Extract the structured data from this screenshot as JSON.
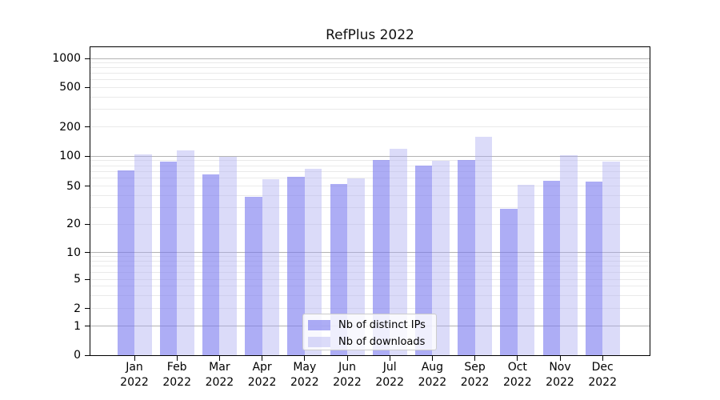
{
  "title": "RefPlus 2022",
  "chart_data": {
    "type": "bar",
    "title": "RefPlus 2022",
    "yscale": "log-like (ticks 0,1,2,5,10,20,50,100,200,500,1000)",
    "grid": true,
    "legend_position": "lower center",
    "ylim": [
      0,
      1000
    ],
    "yticks": [
      0,
      1,
      2,
      5,
      10,
      20,
      50,
      100,
      200,
      500,
      1000
    ],
    "categories": [
      {
        "month": "Jan",
        "year": "2022"
      },
      {
        "month": "Feb",
        "year": "2022"
      },
      {
        "month": "Mar",
        "year": "2022"
      },
      {
        "month": "Apr",
        "year": "2022"
      },
      {
        "month": "May",
        "year": "2022"
      },
      {
        "month": "Jun",
        "year": "2022"
      },
      {
        "month": "Jul",
        "year": "2022"
      },
      {
        "month": "Aug",
        "year": "2022"
      },
      {
        "month": "Sep",
        "year": "2022"
      },
      {
        "month": "Oct",
        "year": "2022"
      },
      {
        "month": "Nov",
        "year": "2022"
      },
      {
        "month": "Dec",
        "year": "2022"
      }
    ],
    "series": [
      {
        "name": "Nb of distinct IPs",
        "color": "#7777ee",
        "alpha": 0.6,
        "values": [
          72,
          88,
          66,
          39,
          62,
          53,
          92,
          80,
          92,
          29,
          57,
          56
        ]
      },
      {
        "name": "Nb of downloads",
        "color": "#aaaaf0",
        "alpha": 0.42,
        "values": [
          104,
          114,
          99,
          59,
          75,
          60,
          120,
          89,
          158,
          52,
          102,
          88
        ]
      }
    ]
  }
}
